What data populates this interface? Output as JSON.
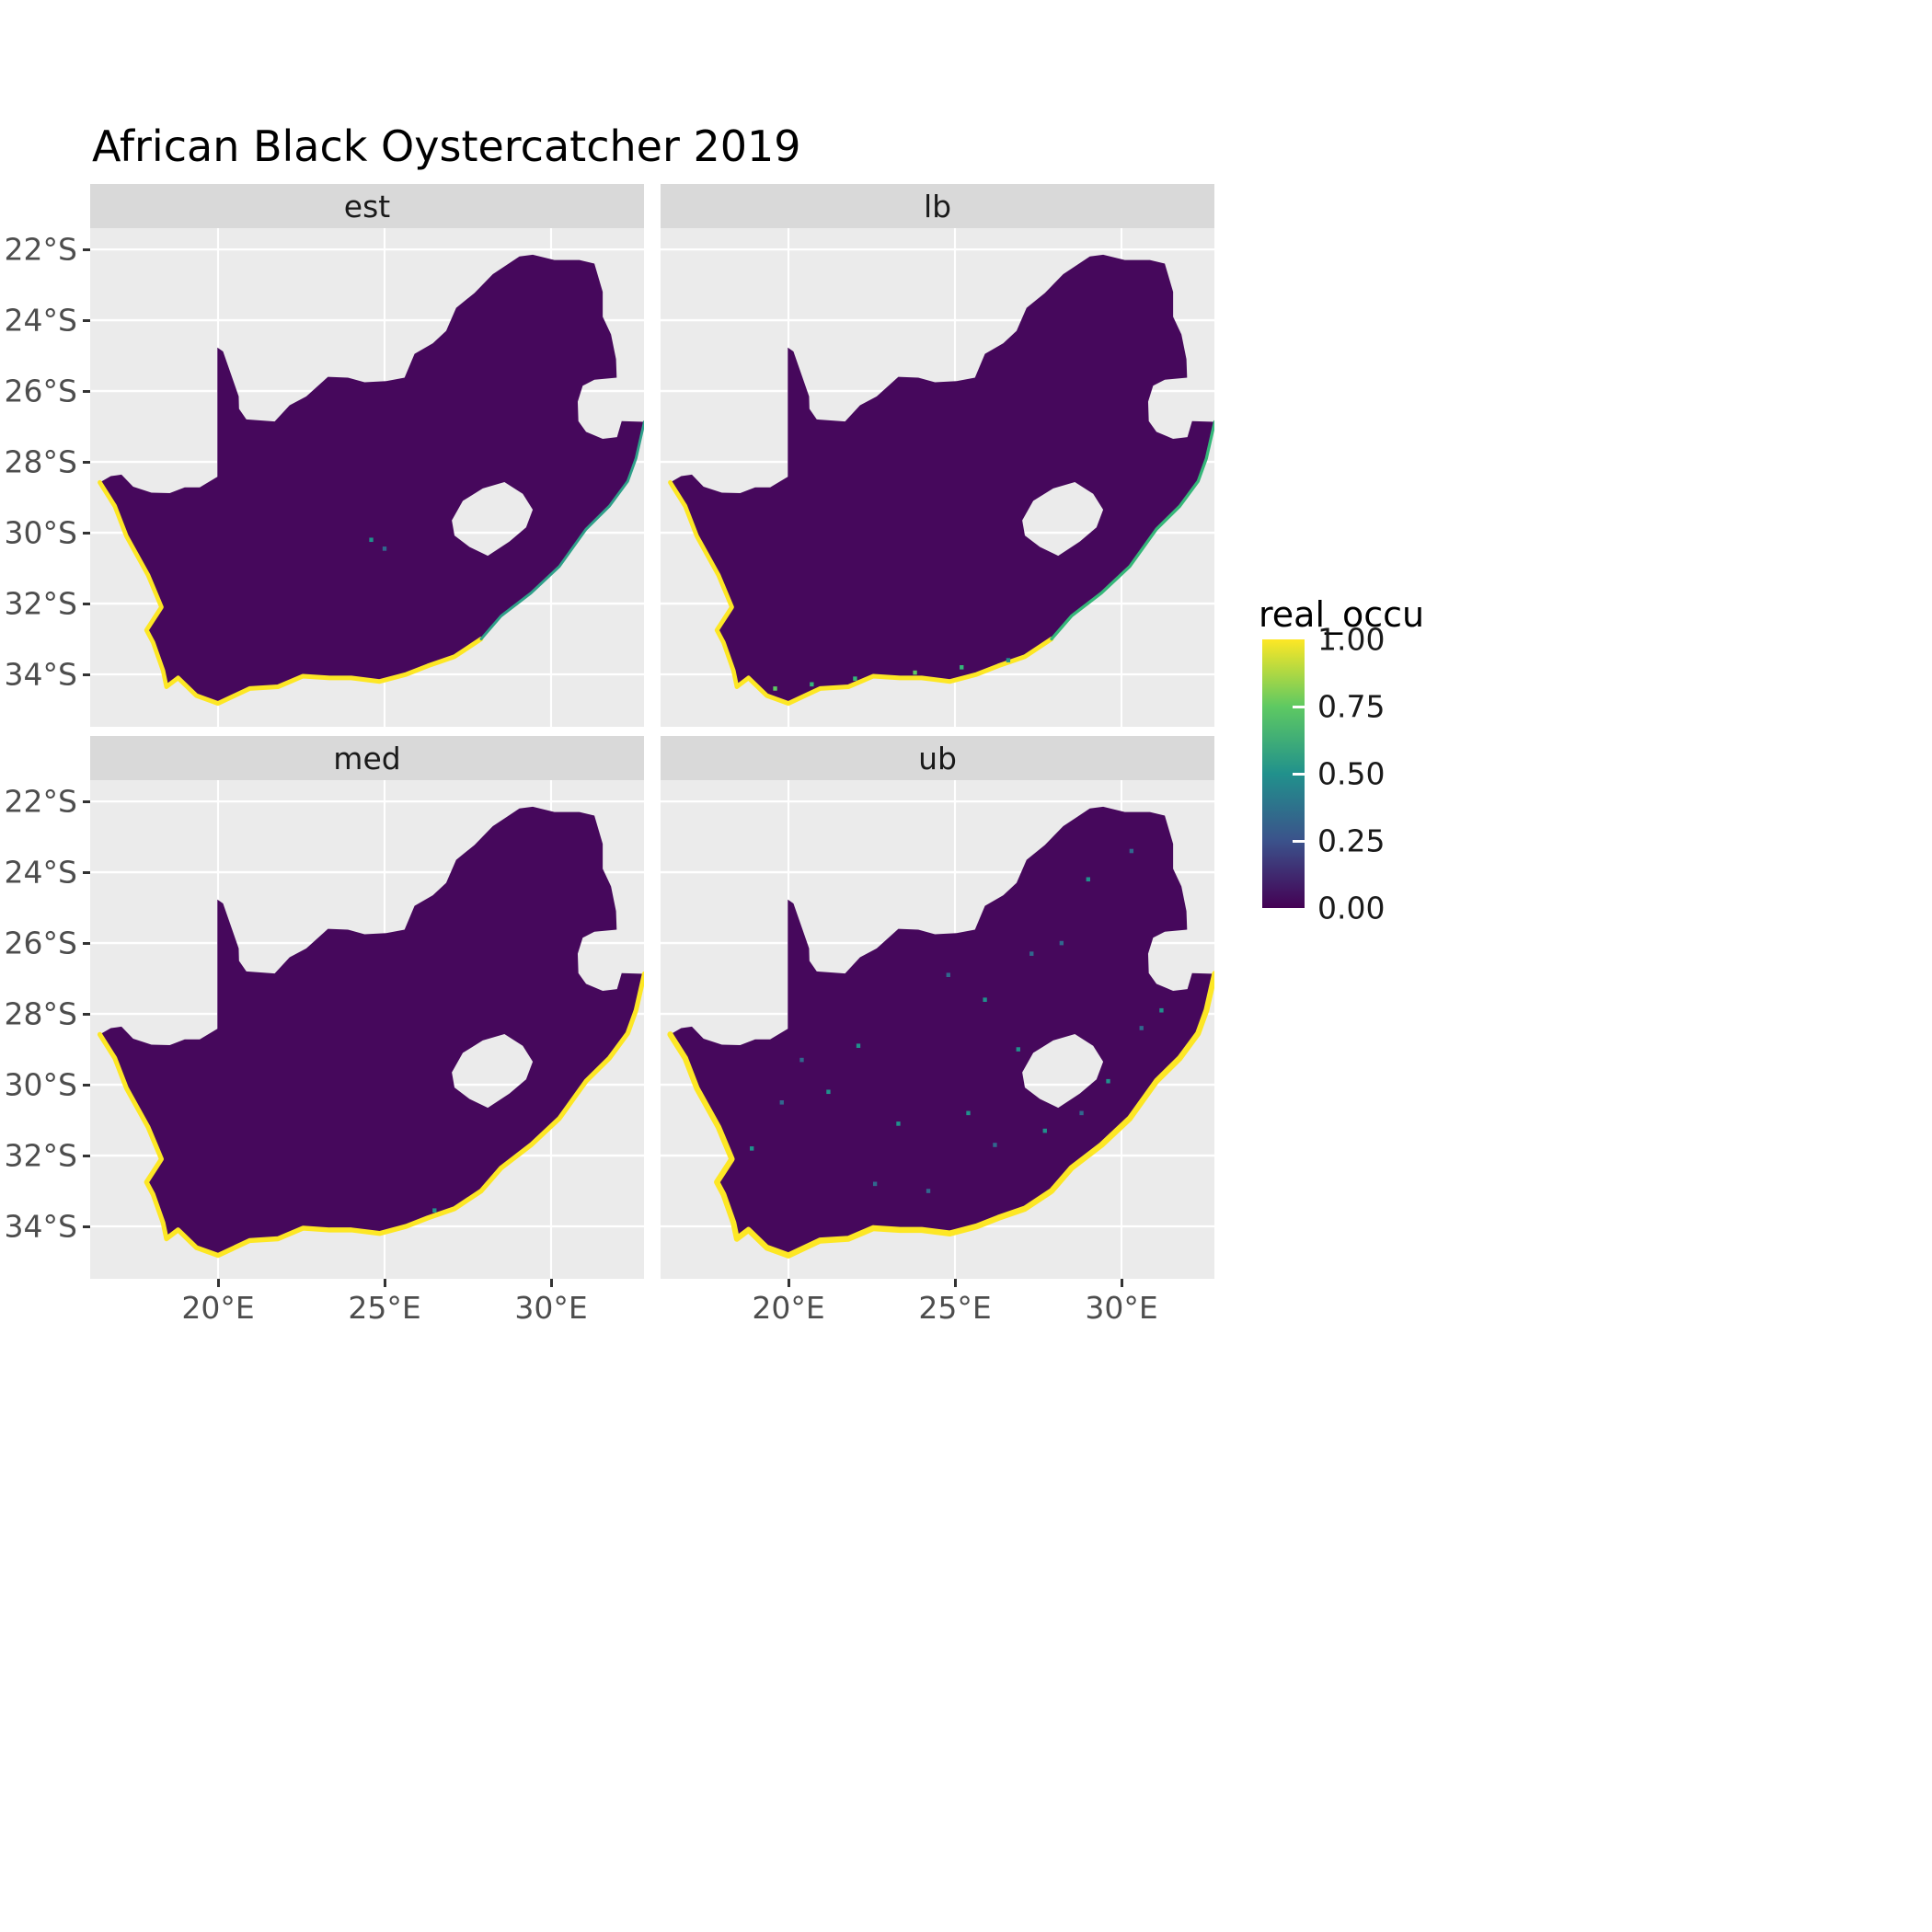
{
  "title": "African Black Oystercatcher 2019",
  "legend": {
    "title": "real_occu",
    "ticks": [
      {
        "value": 1.0,
        "label": "1.00"
      },
      {
        "value": 0.75,
        "label": "0.75"
      },
      {
        "value": 0.5,
        "label": "0.50"
      },
      {
        "value": 0.25,
        "label": "0.25"
      },
      {
        "value": 0.0,
        "label": "0.00"
      }
    ],
    "gradient": [
      "#FDE725",
      "#5EC962",
      "#21918C",
      "#3B528B",
      "#440154"
    ]
  },
  "axes": {
    "x": {
      "ticks": [
        {
          "value": 20,
          "label": "20°E"
        },
        {
          "value": 25,
          "label": "25°E"
        },
        {
          "value": 30,
          "label": "30°E"
        }
      ]
    },
    "y": {
      "ticks": [
        {
          "value": 22,
          "label": "22°S"
        },
        {
          "value": 24,
          "label": "24°S"
        },
        {
          "value": 26,
          "label": "26°S"
        },
        {
          "value": 28,
          "label": "28°S"
        },
        {
          "value": 30,
          "label": "30°S"
        },
        {
          "value": 32,
          "label": "32°S"
        },
        {
          "value": 34,
          "label": "34°S"
        }
      ]
    }
  },
  "panel": {
    "bg": "#EBEBEB",
    "grid": "#FFFFFF",
    "strip_bg": "#D9D9D9",
    "strip_text": "#1A1A1A",
    "axis_text": "#4D4D4D"
  },
  "map": {
    "fill": "#46085C",
    "coast_color": "#FDE725",
    "outer": [
      [
        16.45,
        28.58
      ],
      [
        16.78,
        28.4
      ],
      [
        17.1,
        28.36
      ],
      [
        17.45,
        28.7
      ],
      [
        18.0,
        28.87
      ],
      [
        18.55,
        28.88
      ],
      [
        19.0,
        28.72
      ],
      [
        19.45,
        28.72
      ],
      [
        19.98,
        28.42
      ],
      [
        19.98,
        24.77
      ],
      [
        20.15,
        24.88
      ],
      [
        20.62,
        26.15
      ],
      [
        20.63,
        26.5
      ],
      [
        20.85,
        26.8
      ],
      [
        21.7,
        26.86
      ],
      [
        22.15,
        26.4
      ],
      [
        22.65,
        26.15
      ],
      [
        23.3,
        25.6
      ],
      [
        23.9,
        25.62
      ],
      [
        24.4,
        25.75
      ],
      [
        25.05,
        25.72
      ],
      [
        25.6,
        25.62
      ],
      [
        25.9,
        24.95
      ],
      [
        26.45,
        24.65
      ],
      [
        26.85,
        24.3
      ],
      [
        27.15,
        23.65
      ],
      [
        27.7,
        23.23
      ],
      [
        28.25,
        22.7
      ],
      [
        29.05,
        22.2
      ],
      [
        29.45,
        22.15
      ],
      [
        30.1,
        22.3
      ],
      [
        30.85,
        22.3
      ],
      [
        31.3,
        22.4
      ],
      [
        31.55,
        23.2
      ],
      [
        31.55,
        23.9
      ],
      [
        31.8,
        24.4
      ],
      [
        31.95,
        25.1
      ],
      [
        31.97,
        25.62
      ],
      [
        31.3,
        25.68
      ],
      [
        30.95,
        25.85
      ],
      [
        30.8,
        26.3
      ],
      [
        30.82,
        26.85
      ],
      [
        31.05,
        27.15
      ],
      [
        31.55,
        27.35
      ],
      [
        31.98,
        27.3
      ],
      [
        32.12,
        26.85
      ],
      [
        32.8,
        26.87
      ],
      [
        32.55,
        27.9
      ],
      [
        32.3,
        28.55
      ],
      [
        31.75,
        29.25
      ],
      [
        31.05,
        29.9
      ],
      [
        30.25,
        30.95
      ],
      [
        29.4,
        31.7
      ],
      [
        28.5,
        32.35
      ],
      [
        27.9,
        33.0
      ],
      [
        27.1,
        33.5
      ],
      [
        26.3,
        33.76
      ],
      [
        25.65,
        34.0
      ],
      [
        24.85,
        34.2
      ],
      [
        24.0,
        34.1
      ],
      [
        23.35,
        34.1
      ],
      [
        22.55,
        34.05
      ],
      [
        21.8,
        34.35
      ],
      [
        20.95,
        34.4
      ],
      [
        20.0,
        34.82
      ],
      [
        19.35,
        34.6
      ],
      [
        18.8,
        34.1
      ],
      [
        18.45,
        34.35
      ],
      [
        18.35,
        33.9
      ],
      [
        18.05,
        33.1
      ],
      [
        17.85,
        32.75
      ],
      [
        18.3,
        32.1
      ],
      [
        17.9,
        31.2
      ],
      [
        17.25,
        30.1
      ],
      [
        16.9,
        29.25
      ],
      [
        16.45,
        28.58
      ]
    ],
    "lesotho": [
      [
        27.02,
        29.65
      ],
      [
        27.35,
        29.1
      ],
      [
        27.95,
        28.75
      ],
      [
        28.6,
        28.57
      ],
      [
        29.15,
        28.9
      ],
      [
        29.45,
        29.35
      ],
      [
        29.25,
        29.85
      ],
      [
        28.75,
        30.25
      ],
      [
        28.1,
        30.65
      ],
      [
        27.55,
        30.4
      ],
      [
        27.1,
        30.08
      ]
    ],
    "coast": [
      [
        16.45,
        28.58
      ],
      [
        16.9,
        29.25
      ],
      [
        17.25,
        30.1
      ],
      [
        17.9,
        31.2
      ],
      [
        18.3,
        32.1
      ],
      [
        17.85,
        32.75
      ],
      [
        18.05,
        33.1
      ],
      [
        18.35,
        33.9
      ],
      [
        18.45,
        34.35
      ],
      [
        18.8,
        34.1
      ],
      [
        19.35,
        34.6
      ],
      [
        20.0,
        34.82
      ],
      [
        20.95,
        34.4
      ],
      [
        21.8,
        34.35
      ],
      [
        22.55,
        34.05
      ],
      [
        23.35,
        34.1
      ],
      [
        24.0,
        34.1
      ],
      [
        24.85,
        34.2
      ],
      [
        25.65,
        34.0
      ],
      [
        26.3,
        33.76
      ],
      [
        27.1,
        33.5
      ],
      [
        27.9,
        33.0
      ],
      [
        28.5,
        32.35
      ],
      [
        29.4,
        31.7
      ],
      [
        30.25,
        30.95
      ],
      [
        31.05,
        29.9
      ],
      [
        31.75,
        29.25
      ],
      [
        32.3,
        28.55
      ],
      [
        32.55,
        27.9
      ],
      [
        32.8,
        26.87
      ]
    ]
  },
  "facets": [
    {
      "label": "est",
      "segments": [
        [
          0,
          21,
          "#FDE725",
          0.13
        ],
        [
          21,
          29,
          "#2FA089",
          0.08
        ]
      ],
      "speckles": [
        [
          25.0,
          30.45,
          "#31688E"
        ],
        [
          24.6,
          30.2,
          "#21918C"
        ]
      ]
    },
    {
      "label": "lb",
      "segments": [
        [
          0,
          21,
          "#FDE725",
          0.13
        ],
        [
          21,
          29,
          "#35B779",
          0.09
        ]
      ],
      "speckles": [
        [
          20.7,
          34.28,
          "#35B779"
        ],
        [
          22.0,
          34.12,
          "#35B779"
        ],
        [
          23.8,
          33.95,
          "#5EC962"
        ],
        [
          25.2,
          33.8,
          "#35B779"
        ],
        [
          19.6,
          34.4,
          "#5EC962"
        ],
        [
          26.6,
          33.6,
          "#21918C"
        ]
      ]
    },
    {
      "label": "med",
      "segments": [
        [
          0,
          29,
          "#FDE725",
          0.14
        ]
      ],
      "speckles": [
        [
          26.5,
          33.55,
          "#21918C"
        ]
      ]
    },
    {
      "label": "ub",
      "segments": [
        [
          0,
          29,
          "#FDE725",
          0.17
        ]
      ],
      "speckles": [
        [
          18.9,
          31.8,
          "#21918C"
        ],
        [
          19.8,
          30.5,
          "#31688E"
        ],
        [
          21.2,
          30.2,
          "#21918C"
        ],
        [
          22.6,
          32.8,
          "#31688E"
        ],
        [
          23.3,
          31.1,
          "#21918C"
        ],
        [
          24.2,
          33.0,
          "#31688E"
        ],
        [
          25.4,
          30.8,
          "#21918C"
        ],
        [
          26.2,
          31.7,
          "#31688E"
        ],
        [
          27.7,
          31.3,
          "#21918C"
        ],
        [
          28.8,
          30.8,
          "#31688E"
        ],
        [
          29.6,
          29.9,
          "#21918C"
        ],
        [
          30.6,
          28.4,
          "#31688E"
        ],
        [
          31.2,
          27.9,
          "#21918C"
        ],
        [
          27.3,
          26.3,
          "#31688E"
        ],
        [
          25.9,
          27.6,
          "#21918C"
        ],
        [
          24.8,
          26.9,
          "#31688E"
        ],
        [
          29.0,
          24.2,
          "#21918C"
        ],
        [
          30.3,
          23.4,
          "#31688E"
        ],
        [
          22.1,
          28.9,
          "#21918C"
        ],
        [
          20.4,
          29.3,
          "#31688E"
        ],
        [
          26.9,
          29.0,
          "#21918C"
        ],
        [
          28.2,
          26.0,
          "#31688E"
        ]
      ]
    }
  ],
  "chart_data": {
    "type": "heatmap",
    "subtype": "faceted_raster_occupancy_map",
    "title": "African Black Oystercatcher 2019",
    "region": "South Africa",
    "facet_labels": [
      "est",
      "lb",
      "med",
      "ub"
    ],
    "facet_layout": "2x2 grid: est (top-left), lb (top-right), med (bottom-left), ub (bottom-right)",
    "legend_title": "real_occu",
    "color_scale": {
      "name": "viridis",
      "domain": [
        0,
        1
      ],
      "stops": [
        {
          "value": 0.0,
          "color": "#440154"
        },
        {
          "value": 0.25,
          "color": "#3B528B"
        },
        {
          "value": 0.5,
          "color": "#21918C"
        },
        {
          "value": 0.75,
          "color": "#5EC962"
        },
        {
          "value": 1.0,
          "color": "#FDE725"
        }
      ]
    },
    "x_axis": {
      "label": "",
      "tick_values": [
        20,
        25,
        30
      ],
      "tick_labels": [
        "20°E",
        "25°E",
        "30°E"
      ],
      "range_deg_east": [
        16.16,
        32.79
      ],
      "grid": true
    },
    "y_axis": {
      "label": "",
      "tick_values": [
        22,
        24,
        26,
        28,
        30,
        32,
        34
      ],
      "tick_labels": [
        "22°S",
        "24°S",
        "26°S",
        "28°S",
        "30°S",
        "32°S",
        "34°S"
      ],
      "range_deg_south": [
        21.4,
        35.48
      ],
      "grid": true
    },
    "summary": "Four faceted raster maps of South Africa (estimate, lower bound, median, upper bound) of realized occupancy; interior cells ≈ 0.00 (dark purple), coastal cells ≈ 1.00 (yellow); ub facet shows scattered slightly higher values inland; Lesotho appears as a hole and Eswatini as a notch on the eastern border."
  }
}
